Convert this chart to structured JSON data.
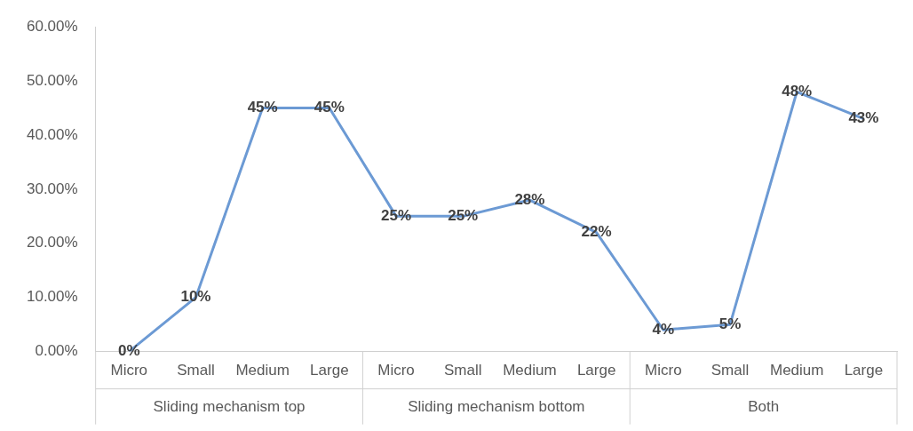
{
  "chart_data": {
    "type": "line",
    "categories": [
      "Micro",
      "Small",
      "Medium",
      "Large",
      "Micro",
      "Small",
      "Medium",
      "Large",
      "Micro",
      "Small",
      "Medium",
      "Large"
    ],
    "series": [
      {
        "color": "#6c9ad4",
        "values": [
          0,
          10,
          45,
          45,
          25,
          25,
          28,
          22,
          4,
          5,
          48,
          43
        ],
        "value_labels": [
          "0%",
          "10%",
          "45%",
          "45%",
          "25%",
          "25%",
          "28%",
          "22%",
          "4%",
          "5%",
          "48%",
          "43%"
        ]
      }
    ],
    "ylim": [
      0,
      60
    ],
    "yticks": [
      {
        "value": 0,
        "label": "0.00%"
      },
      {
        "value": 10,
        "label": "10.00%"
      },
      {
        "value": 20,
        "label": "20.00%"
      },
      {
        "value": 30,
        "label": "30.00%"
      },
      {
        "value": 40,
        "label": "40.00%"
      },
      {
        "value": 50,
        "label": "50.00%"
      },
      {
        "value": 60,
        "label": "60.00%"
      }
    ],
    "annotations": [
      "Sliding mechanism top",
      "Sliding mechanism bottom",
      "Both"
    ],
    "grid": false,
    "legend": false,
    "marker": "none",
    "line_style": "solid"
  }
}
